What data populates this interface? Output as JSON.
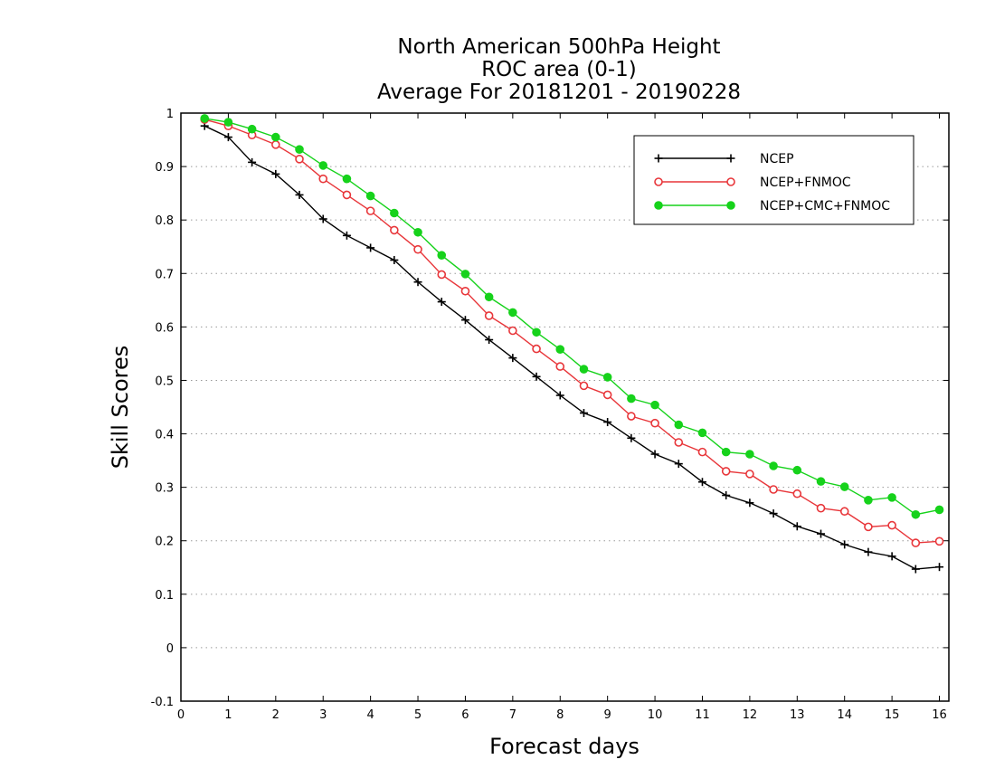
{
  "chart_data": {
    "type": "line",
    "title": [
      "North American 500hPa Height",
      "ROC area (0-1)",
      "Average For 20181201 - 20190228"
    ],
    "xlabel": "Forecast days",
    "ylabel": "Skill Scores",
    "xlim": [
      0,
      16.2
    ],
    "ylim": [
      -0.1,
      1
    ],
    "xticks": [
      0,
      1,
      2,
      3,
      4,
      5,
      6,
      7,
      8,
      9,
      10,
      11,
      12,
      13,
      14,
      15,
      16
    ],
    "xtick_labels": [
      "0",
      "1",
      "2",
      "3",
      "4",
      "5",
      "6",
      "7",
      "8",
      "9",
      "10",
      "11",
      "12",
      "13",
      "14",
      "15",
      "16"
    ],
    "yticks": [
      -0.1,
      0,
      0.1,
      0.2,
      0.3,
      0.4,
      0.5,
      0.6,
      0.7,
      0.8,
      0.9,
      1
    ],
    "ytick_labels": [
      "-0.1",
      "0",
      "0.1",
      "0.2",
      "0.3",
      "0.4",
      "0.5",
      "0.6",
      "0.7",
      "0.8",
      "0.9",
      "1"
    ],
    "grid": true,
    "legend_position": "top-right",
    "x": [
      0.5,
      1,
      1.5,
      2,
      2.5,
      3,
      3.5,
      4,
      4.5,
      5,
      5.5,
      6,
      6.5,
      7,
      7.5,
      8,
      8.5,
      9,
      9.5,
      10,
      10.5,
      11,
      11.5,
      12,
      12.5,
      13,
      13.5,
      14,
      14.5,
      15,
      15.5,
      16
    ],
    "series": [
      {
        "name": "NCEP",
        "color": "#000000",
        "marker": "plus",
        "values": [
          0.976,
          0.955,
          0.908,
          0.886,
          0.847,
          0.802,
          0.771,
          0.748,
          0.725,
          0.684,
          0.647,
          0.613,
          0.576,
          0.542,
          0.507,
          0.472,
          0.439,
          0.422,
          0.392,
          0.362,
          0.344,
          0.31,
          0.285,
          0.271,
          0.251,
          0.227,
          0.213,
          0.193,
          0.179,
          0.171,
          0.147,
          0.151
        ]
      },
      {
        "name": "NCEP+FNMOC",
        "color": "#e8363a",
        "marker": "open-circle",
        "values": [
          0.988,
          0.976,
          0.959,
          0.941,
          0.914,
          0.877,
          0.847,
          0.817,
          0.781,
          0.745,
          0.698,
          0.667,
          0.621,
          0.593,
          0.559,
          0.526,
          0.49,
          0.473,
          0.433,
          0.42,
          0.384,
          0.366,
          0.33,
          0.325,
          0.296,
          0.288,
          0.261,
          0.255,
          0.226,
          0.229,
          0.196,
          0.199
        ]
      },
      {
        "name": "NCEP+CMC+FNMOC",
        "color": "#16d21b",
        "marker": "filled-circle",
        "values": [
          0.99,
          0.983,
          0.97,
          0.955,
          0.932,
          0.902,
          0.877,
          0.845,
          0.813,
          0.777,
          0.734,
          0.699,
          0.656,
          0.627,
          0.59,
          0.558,
          0.521,
          0.506,
          0.466,
          0.454,
          0.417,
          0.402,
          0.366,
          0.362,
          0.34,
          0.332,
          0.311,
          0.301,
          0.276,
          0.281,
          0.249,
          0.258
        ]
      }
    ]
  }
}
